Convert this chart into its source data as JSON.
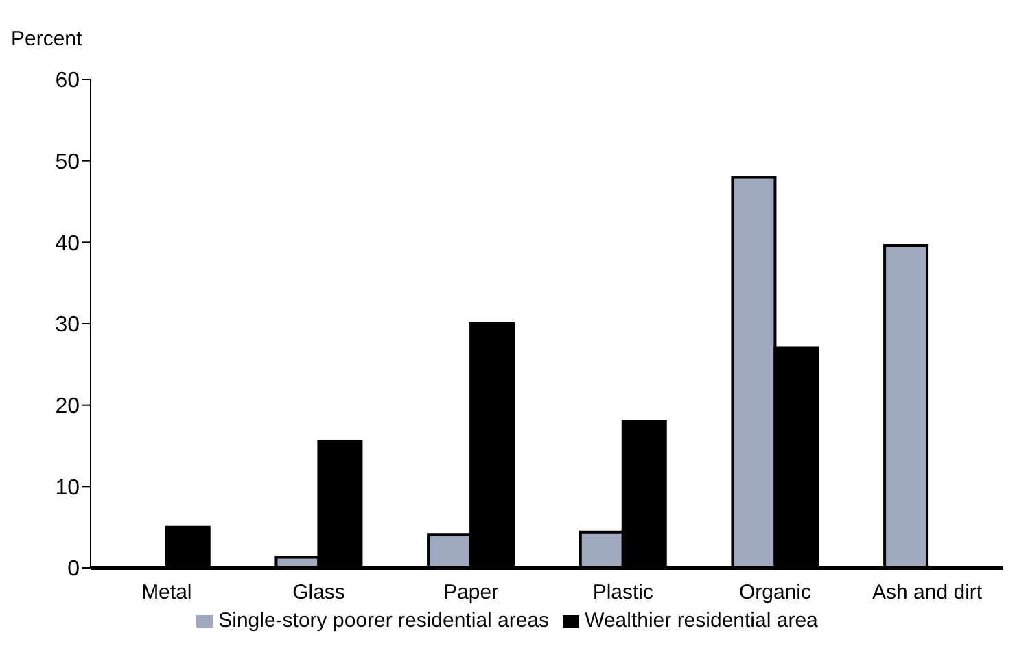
{
  "chart_data": {
    "type": "bar",
    "ylabel": "Percent",
    "categories": [
      "Metal",
      "Glass",
      "Paper",
      "Plastic",
      "Organic",
      "Ash and dirt"
    ],
    "series": [
      {
        "name": "Single-story poorer residential areas",
        "color": "#9ea9c0",
        "values": [
          null,
          1.3,
          4.1,
          4.4,
          48,
          39.6
        ]
      },
      {
        "name": "Wealthier residential area",
        "color": "#000000",
        "values": [
          5,
          15.5,
          30,
          18,
          27,
          null
        ]
      }
    ],
    "ylim": [
      0,
      60
    ],
    "yticks": [
      0,
      10,
      20,
      30,
      40,
      50,
      60
    ],
    "grid": false,
    "legend": "bottom"
  }
}
